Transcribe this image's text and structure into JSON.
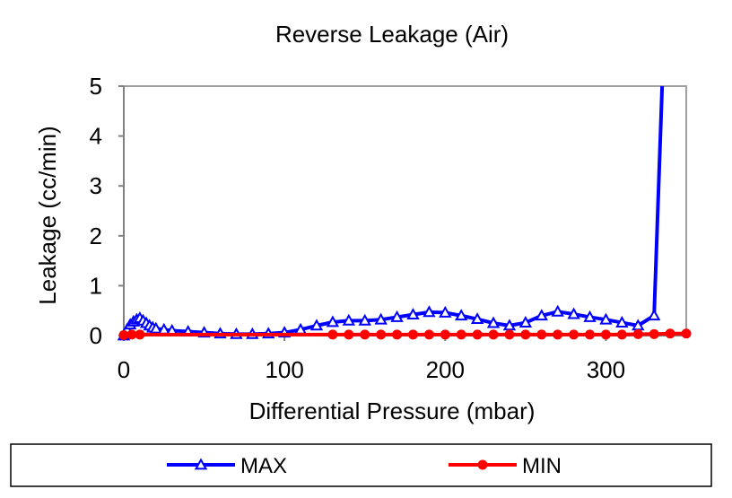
{
  "chart_data": {
    "type": "line",
    "title": "Reverse Leakage (Air)",
    "xlabel": "Differential Pressure (mbar)",
    "ylabel": "Leakage (cc/min)",
    "xlim": [
      0,
      350
    ],
    "ylim": [
      0,
      5
    ],
    "xticks": [
      "0",
      "100",
      "200",
      "300"
    ],
    "xtick_values": [
      0,
      100,
      200,
      300
    ],
    "yticks": [
      "0",
      "1",
      "2",
      "3",
      "4",
      "5"
    ],
    "ytick_values": [
      0,
      1,
      2,
      3,
      4,
      5
    ],
    "grid": false,
    "legend_position": "bottom",
    "series": [
      {
        "name": "MAX",
        "color": "#0000FF",
        "marker": "triangle",
        "x": [
          0,
          2,
          4,
          6,
          8,
          10,
          12,
          14,
          16,
          18,
          20,
          25,
          30,
          40,
          50,
          60,
          70,
          80,
          90,
          100,
          110,
          120,
          130,
          140,
          150,
          160,
          170,
          180,
          190,
          200,
          210,
          220,
          230,
          240,
          250,
          260,
          270,
          280,
          290,
          300,
          310,
          320,
          330,
          335
        ],
        "y": [
          0.0,
          0.12,
          0.22,
          0.28,
          0.32,
          0.35,
          0.3,
          0.25,
          0.2,
          0.16,
          0.14,
          0.12,
          0.1,
          0.08,
          0.06,
          0.04,
          0.03,
          0.03,
          0.04,
          0.06,
          0.12,
          0.2,
          0.27,
          0.3,
          0.3,
          0.32,
          0.37,
          0.42,
          0.47,
          0.46,
          0.4,
          0.33,
          0.25,
          0.2,
          0.26,
          0.4,
          0.48,
          0.43,
          0.37,
          0.32,
          0.26,
          0.2,
          0.4,
          5.0
        ]
      },
      {
        "name": "MIN",
        "color": "#FF0000",
        "marker": "circle",
        "x": [
          0,
          5,
          10,
          130,
          140,
          150,
          160,
          170,
          180,
          190,
          200,
          210,
          220,
          230,
          240,
          250,
          260,
          270,
          280,
          290,
          300,
          310,
          320,
          330,
          340,
          350
        ],
        "y": [
          0.01,
          0.02,
          0.02,
          0.02,
          0.02,
          0.02,
          0.02,
          0.02,
          0.02,
          0.02,
          0.02,
          0.02,
          0.02,
          0.02,
          0.02,
          0.02,
          0.02,
          0.02,
          0.02,
          0.02,
          0.02,
          0.02,
          0.03,
          0.03,
          0.04,
          0.04
        ]
      }
    ]
  }
}
